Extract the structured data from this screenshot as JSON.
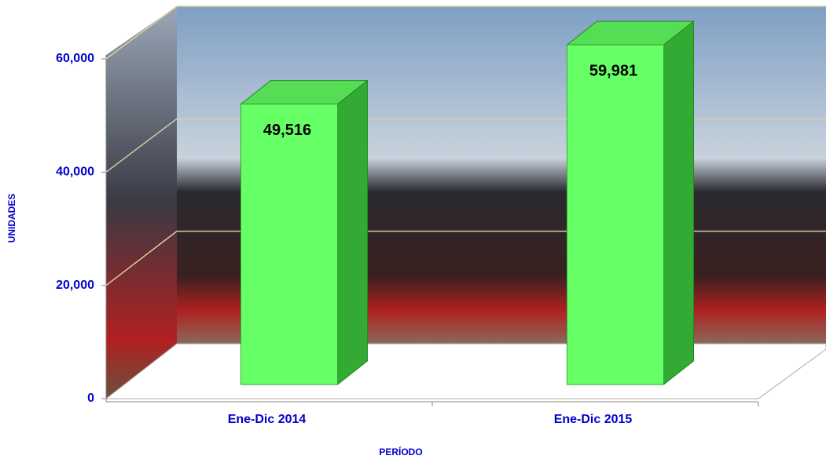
{
  "chart_data": {
    "type": "bar3d",
    "categories": [
      "Ene-Dic 2014",
      "Ene-Dic 2015"
    ],
    "values": [
      49516,
      59981
    ],
    "value_labels": [
      "49,516",
      "59,981"
    ],
    "color": "#66ff66",
    "ylim": [
      0,
      60000
    ],
    "yticks": [
      0,
      {
        "value": 20000,
        "label": "20,000"
      },
      {
        "value": 40000,
        "label": "40,000"
      },
      {
        "value": 60000,
        "label": "60,000"
      }
    ],
    "grid": true,
    "y_label": "UNIDADES",
    "x_label": "PERÍODO"
  }
}
